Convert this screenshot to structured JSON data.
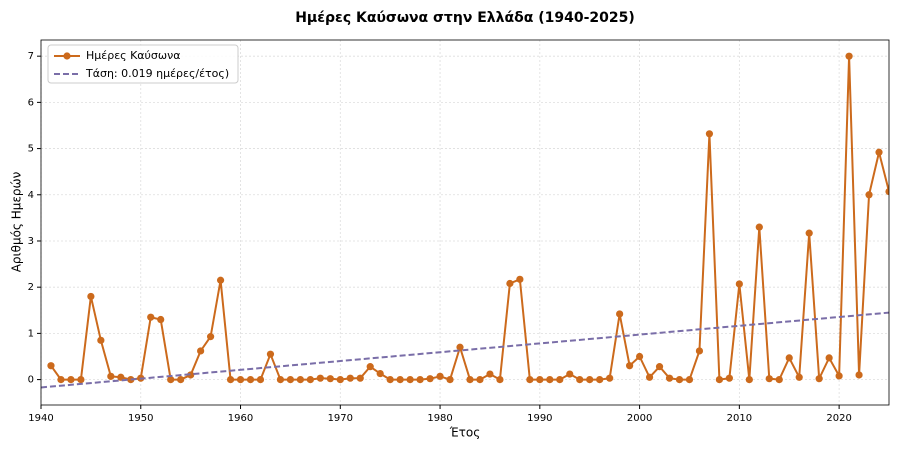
{
  "chart_data": {
    "type": "line",
    "title": "Ημέρες Καύσωνα στην Ελλάδα (1940-2025)",
    "xlabel": "Έτος",
    "ylabel": "Αριθμός Ημερών",
    "xlim": [
      1940,
      2025
    ],
    "ylim": [
      -0.55,
      7.35
    ],
    "xticks": [
      1940,
      1950,
      1960,
      1970,
      1980,
      1990,
      2000,
      2010,
      2020
    ],
    "yticks": [
      0,
      1,
      2,
      3,
      4,
      5,
      6,
      7
    ],
    "grid": true,
    "legend": "upper left",
    "series": [
      {
        "name": "Ημέρες Καύσωνα",
        "color": "#cc6a1c",
        "style": "solid-markers",
        "x": [
          1941,
          1942,
          1943,
          1944,
          1945,
          1946,
          1947,
          1948,
          1949,
          1950,
          1951,
          1952,
          1953,
          1954,
          1955,
          1956,
          1957,
          1958,
          1959,
          1960,
          1961,
          1962,
          1963,
          1964,
          1965,
          1966,
          1967,
          1968,
          1969,
          1970,
          1971,
          1972,
          1973,
          1974,
          1975,
          1976,
          1977,
          1978,
          1979,
          1980,
          1981,
          1982,
          1983,
          1984,
          1985,
          1986,
          1987,
          1988,
          1989,
          1990,
          1991,
          1992,
          1993,
          1994,
          1995,
          1996,
          1997,
          1998,
          1999,
          2000,
          2001,
          2002,
          2003,
          2004,
          2005,
          2006,
          2007,
          2008,
          2009,
          2010,
          2011,
          2012,
          2013,
          2014,
          2015,
          2016,
          2017,
          2018,
          2019,
          2020,
          2021,
          2022,
          2023,
          2024,
          2025
        ],
        "values": [
          0.3,
          0,
          0,
          0,
          1.8,
          0.85,
          0.07,
          0.05,
          0,
          0.03,
          1.35,
          1.3,
          0,
          0,
          0.1,
          0.62,
          0.93,
          2.15,
          0,
          0,
          0,
          0,
          0.55,
          0,
          0,
          0,
          0,
          0.03,
          0.02,
          0,
          0.03,
          0.03,
          0.28,
          0.13,
          0,
          0,
          0,
          0,
          0.02,
          0.07,
          0,
          0.7,
          0,
          0,
          0.12,
          0,
          2.08,
          2.17,
          0,
          0,
          0,
          0,
          0.12,
          0,
          0,
          0,
          0.03,
          1.42,
          0.3,
          0.5,
          0.05,
          0.28,
          0.03,
          0,
          0,
          0.62,
          5.32,
          0,
          0.03,
          2.07,
          0,
          3.3,
          0.02,
          0,
          0.47,
          0.05,
          3.17,
          0.02,
          0.47,
          0.08,
          7.0,
          0.1,
          4.0,
          4.92,
          4.07
        ]
      },
      {
        "name": "Τάση: 0.019 ημέρες/έτος)",
        "color": "#7a6ea8",
        "style": "dashed",
        "x": [
          1940,
          2025
        ],
        "values": [
          -0.17,
          1.45
        ]
      }
    ]
  }
}
